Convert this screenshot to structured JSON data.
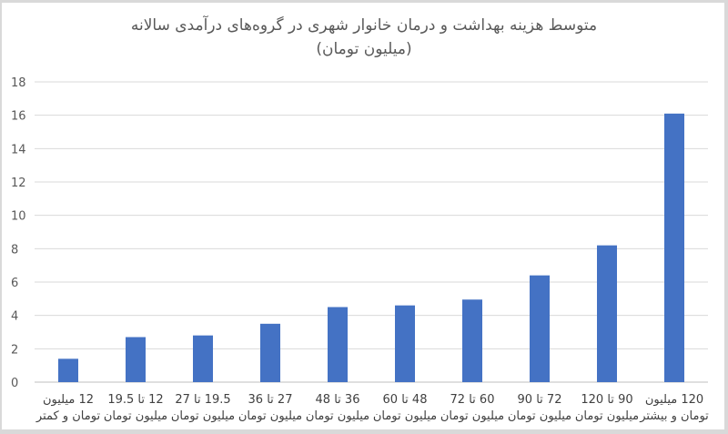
{
  "chart_data": {
    "type": "bar",
    "title": "متوسط هزینه بهداشت و درمان خانوار شهری در گروه‌های درآمدی سالانه",
    "subtitle": "(میلیون تومان)",
    "categories": [
      [
        "12 میلیون",
        "تومان و کمتر"
      ],
      [
        "12 تا 19.5",
        "میلیون تومان"
      ],
      [
        "19.5 تا 27",
        "میلیون تومان"
      ],
      [
        "27 تا 36",
        "میلیون تومان"
      ],
      [
        "36 تا 48",
        "میلیون تومان"
      ],
      [
        "48 تا 60",
        "میلیون تومان"
      ],
      [
        "60 تا 72",
        "میلیون تومان"
      ],
      [
        "72 تا 90",
        "میلیون تومان"
      ],
      [
        "90 تا 120",
        "میلیون تومان"
      ],
      [
        "120 میلیون",
        "تومان و بیشتر"
      ]
    ],
    "values": [
      1.4,
      2.7,
      2.8,
      3.5,
      4.5,
      4.6,
      4.95,
      6.4,
      8.2,
      16.1
    ],
    "ylim": [
      0,
      18
    ],
    "yticks": [
      0,
      2,
      4,
      6,
      8,
      10,
      12,
      14,
      16,
      18
    ],
    "grid": true,
    "legend": "none",
    "bar_color": "#4472c4",
    "grid_color": "#d9d9d9"
  }
}
